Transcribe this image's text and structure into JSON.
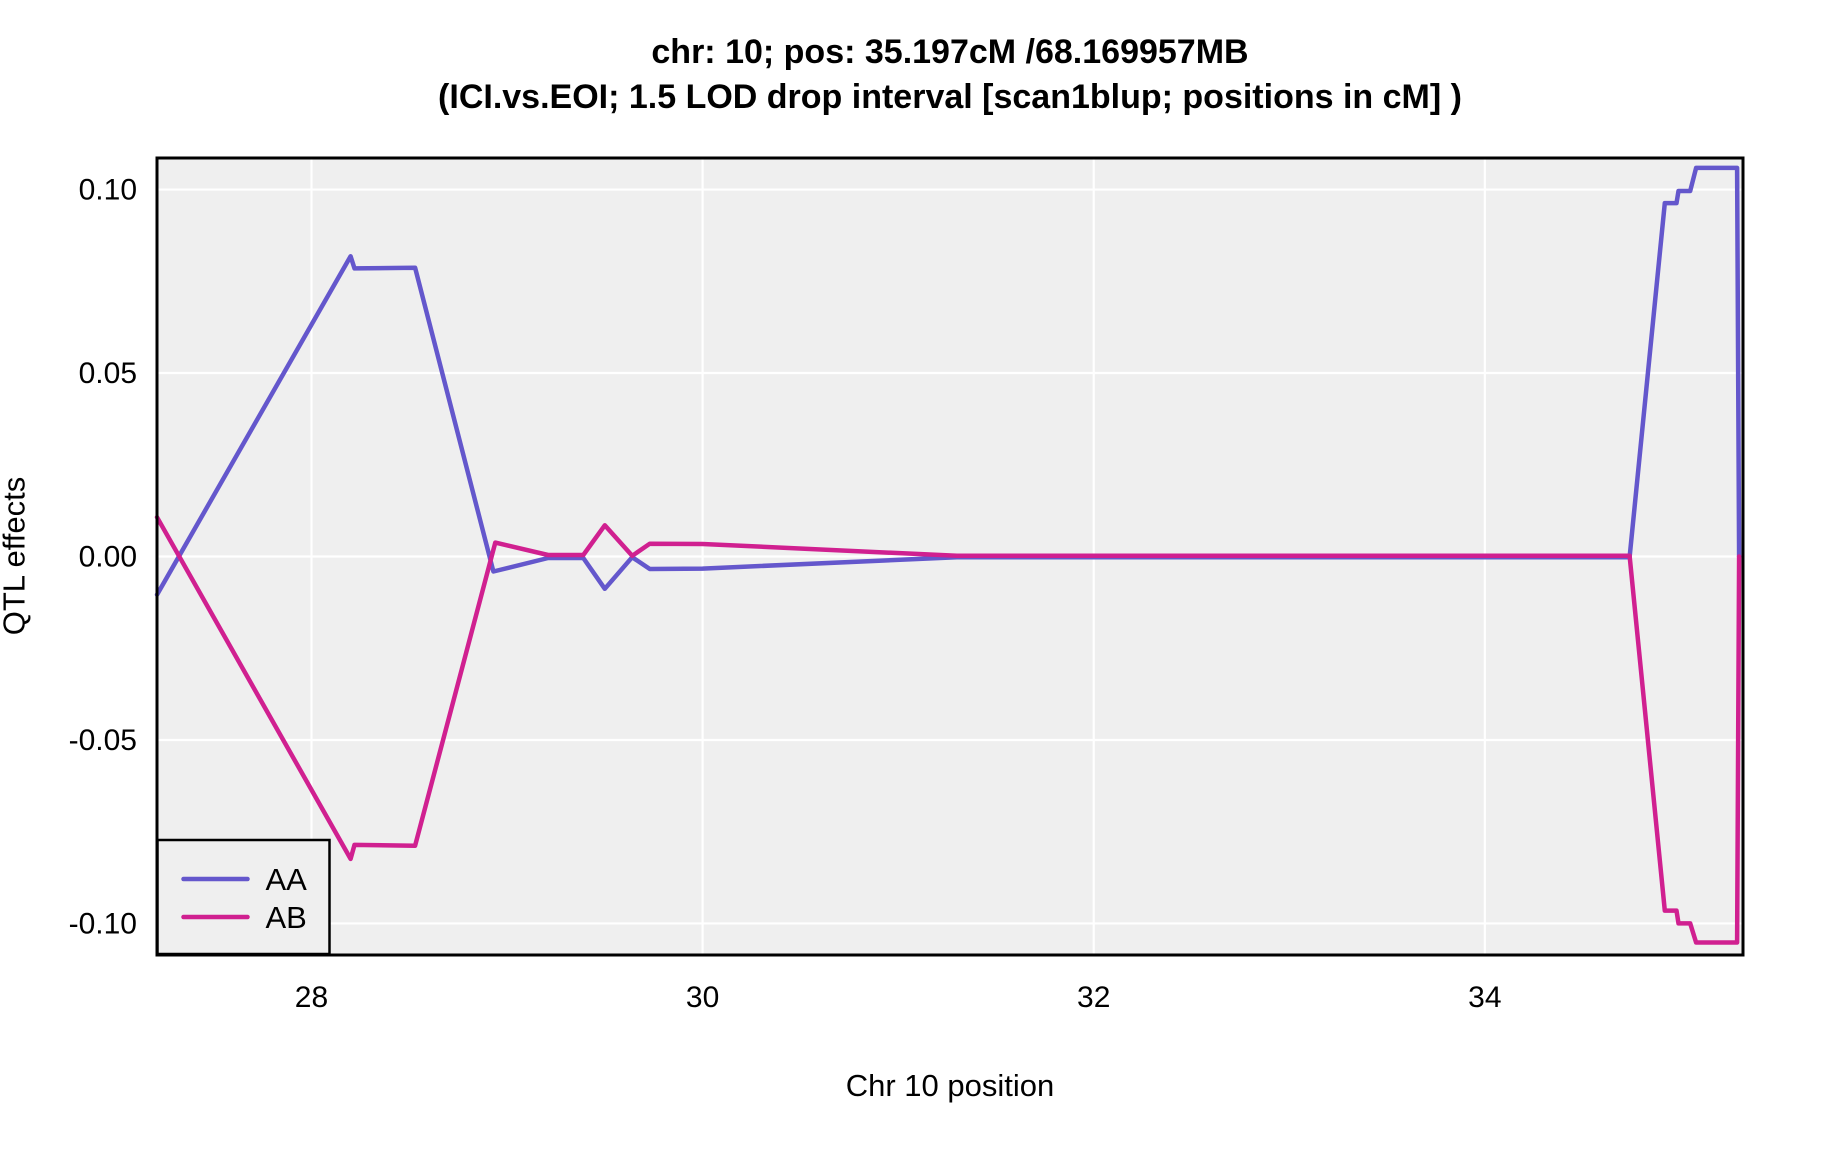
{
  "title": {
    "line1": "chr: 10; pos: 35.197cM /68.169957MB",
    "line2": "(ICI.vs.EOI; 1.5 LOD drop interval [scan1blup; positions in cM] )"
  },
  "axes": {
    "x_label": "Chr 10 position",
    "y_label": "QTL effects"
  },
  "chart_data": {
    "type": "line",
    "title": "chr: 10; pos: 35.197cM /68.169957MB",
    "subtitle": "(ICI.vs.EOI; 1.5 LOD drop interval [scan1blup; positions in cM] )",
    "xlabel": "Chr 10 position",
    "ylabel": "QTL effects",
    "xlim": [
      27.21,
      35.32
    ],
    "ylim": [
      -0.1086,
      0.1086
    ],
    "x_ticks": [
      {
        "value": 28,
        "label": "28"
      },
      {
        "value": 30,
        "label": "30"
      },
      {
        "value": 32,
        "label": "32"
      },
      {
        "value": 34,
        "label": "34"
      }
    ],
    "y_ticks": [
      {
        "value": 0.1,
        "label": "0.10"
      },
      {
        "value": 0.05,
        "label": "0.05"
      },
      {
        "value": 0.0,
        "label": "0.00"
      },
      {
        "value": -0.05,
        "label": "-0.05"
      },
      {
        "value": -0.1,
        "label": "-0.10"
      }
    ],
    "grid": "major-only",
    "panel_bg": "#EFEFEF",
    "grid_color": "#FFFFFF",
    "border_color": "#000000",
    "legend_position": "bottom-left",
    "series": [
      {
        "name": "AA",
        "color": "#6457CC",
        "points": [
          [
            27.21,
            -0.0104
          ],
          [
            28.2,
            0.0818
          ],
          [
            28.22,
            0.0785
          ],
          [
            28.53,
            0.0787
          ],
          [
            28.93,
            -0.0041
          ],
          [
            29.21,
            -0.0004
          ],
          [
            29.39,
            -0.0004
          ],
          [
            29.5,
            -0.0088
          ],
          [
            29.64,
            -0.0002
          ],
          [
            29.73,
            -0.0034
          ],
          [
            30.0,
            -0.0033
          ],
          [
            31.3,
            -0.0002
          ],
          [
            34.74,
            -0.0002
          ],
          [
            34.92,
            0.0963
          ],
          [
            34.98,
            0.0963
          ],
          [
            34.99,
            0.0996
          ],
          [
            35.05,
            0.0996
          ],
          [
            35.08,
            0.1059
          ],
          [
            35.29,
            0.1059
          ],
          [
            35.3,
            0.0
          ]
        ]
      },
      {
        "name": "AB",
        "color": "#D02090",
        "points": [
          [
            27.21,
            0.0107
          ],
          [
            28.2,
            -0.0824
          ],
          [
            28.22,
            -0.0786
          ],
          [
            28.53,
            -0.0788
          ],
          [
            28.94,
            0.0038
          ],
          [
            29.21,
            0.0004
          ],
          [
            29.39,
            0.0004
          ],
          [
            29.5,
            0.0085
          ],
          [
            29.64,
            0.0002
          ],
          [
            29.73,
            0.0035
          ],
          [
            30.0,
            0.0034
          ],
          [
            31.3,
            0.0002
          ],
          [
            34.74,
            0.0002
          ],
          [
            34.92,
            -0.0965
          ],
          [
            34.98,
            -0.0965
          ],
          [
            34.99,
            -0.1
          ],
          [
            35.05,
            -0.1
          ],
          [
            35.08,
            -0.1052
          ],
          [
            35.29,
            -0.1052
          ],
          [
            35.3,
            0.0
          ]
        ]
      }
    ]
  }
}
